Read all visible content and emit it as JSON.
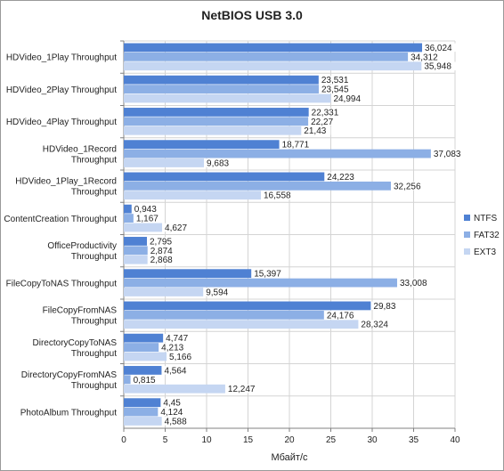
{
  "chart_data": {
    "type": "bar",
    "orientation": "horizontal",
    "title": "NetBIOS USB 3.0",
    "xlabel": "Мбайт/с",
    "ylabel": "",
    "xlim": [
      0,
      40
    ],
    "xticks": [
      "0",
      "5",
      "10",
      "15",
      "20",
      "25",
      "30",
      "35",
      "40"
    ],
    "grid": true,
    "legend_position": "right",
    "categories": [
      [
        "HDVideo_1Play Throughput"
      ],
      [
        "HDVideo_2Play Throughput"
      ],
      [
        "HDVideo_4Play Throughput"
      ],
      [
        "HDVideo_1Record",
        "Throughput"
      ],
      [
        "HDVideo_1Play_1Record",
        "Throughput"
      ],
      [
        "ContentCreation Throughput"
      ],
      [
        "OfficeProductivity",
        "Throughput"
      ],
      [
        "FileCopyToNAS Throughput"
      ],
      [
        "FileCopyFromNAS",
        "Throughput"
      ],
      [
        "DirectoryCopyToNAS",
        "Throughput"
      ],
      [
        "DirectoryCopyFromNAS",
        "Throughput"
      ],
      [
        "PhotoAlbum Throughput"
      ]
    ],
    "series": [
      {
        "name": "NTFS",
        "color": "#4f81d3",
        "values": [
          36.024,
          23.531,
          22.331,
          18.771,
          24.223,
          0.943,
          2.795,
          15.397,
          29.83,
          4.747,
          4.564,
          4.45
        ],
        "labels": [
          "36,024",
          "23,531",
          "22,331",
          "18,771",
          "24,223",
          "0,943",
          "2,795",
          "15,397",
          "29,83",
          "4,747",
          "4,564",
          "4,45"
        ]
      },
      {
        "name": "FAT32",
        "color": "#8cafe5",
        "values": [
          34.312,
          23.545,
          22.27,
          37.083,
          32.256,
          1.167,
          2.874,
          33.008,
          24.176,
          4.213,
          0.815,
          4.124
        ],
        "labels": [
          "34,312",
          "23,545",
          "22,27",
          "37,083",
          "32,256",
          "1,167",
          "2,874",
          "33,008",
          "24,176",
          "4,213",
          "0,815",
          "4,124"
        ]
      },
      {
        "name": "EXT3",
        "color": "#c5d6f2",
        "values": [
          35.948,
          24.994,
          21.43,
          9.683,
          16.558,
          4.627,
          2.868,
          9.594,
          28.324,
          5.166,
          12.247,
          4.588
        ],
        "labels": [
          "35,948",
          "24,994",
          "21,43",
          "9,683",
          "16,558",
          "4,627",
          "2,868",
          "9,594",
          "28,324",
          "5,166",
          "12,247",
          "4,588"
        ]
      }
    ]
  }
}
